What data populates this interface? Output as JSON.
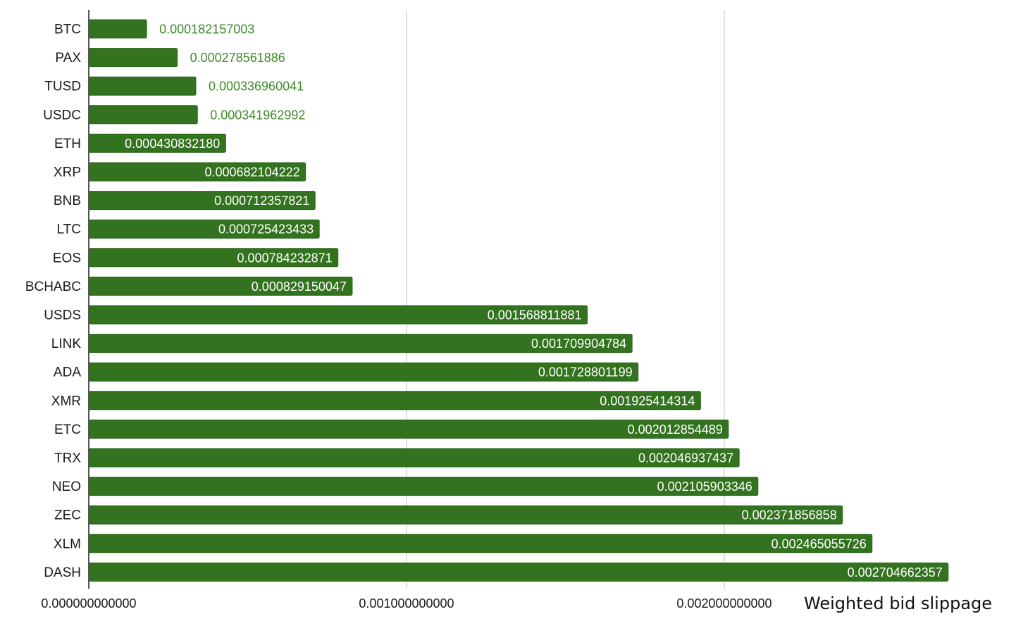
{
  "chart_data": {
    "type": "bar",
    "orientation": "horizontal",
    "xlabel": "Weighted bid slippage",
    "ylabel": "",
    "xlim": [
      0,
      0.0027
    ],
    "grid": true,
    "x_ticks": [
      {
        "value": 0,
        "label": "0.000000000000"
      },
      {
        "value": 0.001,
        "label": "0.001000000000"
      },
      {
        "value": 0.002,
        "label": "0.002000000000"
      }
    ],
    "categories": [
      "BTC",
      "PAX",
      "TUSD",
      "USDC",
      "ETH",
      "XRP",
      "BNB",
      "LTC",
      "EOS",
      "BCHABC",
      "USDS",
      "LINK",
      "ADA",
      "XMR",
      "ETC",
      "TRX",
      "NEO",
      "ZEC",
      "XLM",
      "DASH"
    ],
    "values": [
      0.000182157003,
      0.000278561886,
      0.000336960041,
      0.000341962992,
      0.00043083218,
      0.000682104222,
      0.000712357821,
      0.000725423433,
      0.000784232871,
      0.000829150047,
      0.001568811881,
      0.001709904784,
      0.001728801199,
      0.001925414314,
      0.002012854489,
      0.002046937437,
      0.002105903346,
      0.002371856858,
      0.002465055726,
      0.002704662357
    ],
    "data_labels": [
      "0.000182157003",
      "0.000278561886",
      "0.000336960041",
      "0.000341962992",
      "0.000430832180",
      "0.000682104222",
      "0.000712357821",
      "0.000725423433",
      "0.000784232871",
      "0.000829150047",
      "0.001568811881",
      "0.001709904784",
      "0.001728801199",
      "0.001925414314",
      "0.002012854489",
      "0.002046937437",
      "0.002105903346",
      "0.002371856858",
      "0.002465055726",
      "0.002704662357"
    ],
    "colors": {
      "bar": "#33731f",
      "bar_stroke": "#2a6319",
      "label_inside": "#ffffff",
      "label_outside": "#3f8a2a",
      "grid": "#d6d6d6",
      "axis": "#555555"
    }
  }
}
